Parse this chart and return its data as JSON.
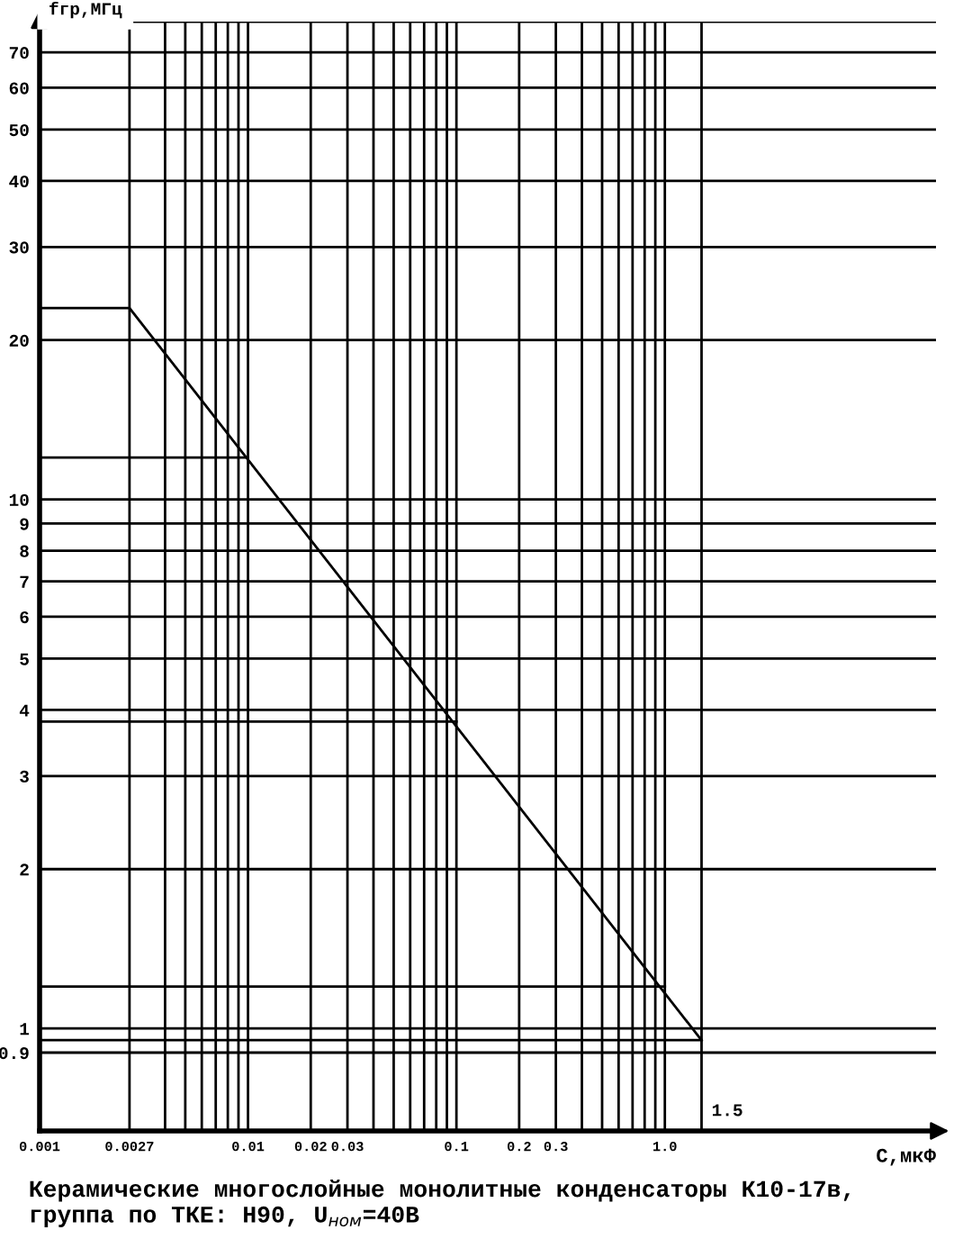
{
  "chart_data": {
    "type": "line",
    "log": "xy",
    "ylabel": "fгр,МГц",
    "xlabel": "С,мкФ",
    "annotations": [
      "Керамические многослойные монолитные конденсаторы К10-17в, группа по ТКЕ: Н90, U$_{ном}$=40В"
    ],
    "series": [
      {
        "x": [
          0.001,
          0.0027,
          1.5
        ],
        "values": [
          23,
          23,
          0.95
        ],
        "color": "#000000"
      },
      {
        "x": [
          0.001,
          0.01
        ],
        "values": [
          12,
          12
        ],
        "color": "#000000"
      },
      {
        "x": [
          0.001,
          0.1
        ],
        "values": [
          3.8,
          3.8
        ],
        "color": "#000000"
      },
      {
        "x": [
          0.001,
          1.0
        ],
        "values": [
          1.2,
          1.2
        ],
        "color": "#000000"
      },
      {
        "x": [
          0.001,
          1.5
        ],
        "values": [
          0.95,
          0.95
        ],
        "color": "#000000"
      }
    ],
    "xlim": [
      0.001,
      20
    ],
    "ylim": [
      0.64,
      80
    ],
    "xticks": [
      0.001,
      0.0027,
      {
        "value": 0.004,
        "label": null
      },
      {
        "value": 0.005,
        "label": null
      },
      {
        "value": 0.006,
        "label": null
      },
      {
        "value": 0.007,
        "label": null
      },
      {
        "value": 0.008,
        "label": null
      },
      {
        "value": 0.009,
        "label": null
      },
      0.01,
      0.02,
      0.03,
      {
        "value": 0.04,
        "label": null
      },
      {
        "value": 0.05,
        "label": null
      },
      {
        "value": 0.06,
        "label": null
      },
      {
        "value": 0.07,
        "label": null
      },
      {
        "value": 0.08,
        "label": null
      },
      {
        "value": 0.09,
        "label": null
      },
      0.1,
      0.2,
      0.3,
      {
        "value": 0.4,
        "label": null
      },
      {
        "value": 0.5,
        "label": null
      },
      {
        "value": 0.6,
        "label": null
      },
      {
        "value": 0.7,
        "label": null
      },
      {
        "value": 0.8,
        "label": null
      },
      {
        "value": 0.9,
        "label": null
      },
      {
        "value": 1.0,
        "label": "1.0"
      }
    ],
    "yticks": [
      0.9,
      1,
      2,
      3,
      4,
      5,
      6,
      7,
      8,
      9,
      10,
      20,
      30,
      40,
      50,
      60,
      70,
      {
        "value": 80,
        "label": null
      }
    ],
    "ref_lines": [
      {
        "axis": "x",
        "value": 1.5,
        "label": "1.5"
      }
    ],
    "grid": true,
    "legend": false,
    "line_style": "solid",
    "marker": "none"
  }
}
